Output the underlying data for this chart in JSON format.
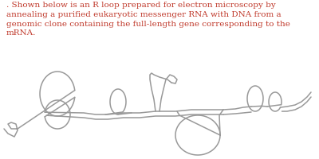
{
  "title_text": ". Shown below is an R loop prepared for electron microscopy by\nannealing a purified eukaryotic messenger RNA with DNA from a\ngenomic clone containing the full-length gene corresponding to the\nmRNA.",
  "title_color": "#c0392b",
  "title_fontsize": 7.5,
  "line_color": "#999999",
  "line_width": 1.1,
  "bg_color": "#ffffff",
  "fig_width": 4.0,
  "fig_height": 2.0
}
